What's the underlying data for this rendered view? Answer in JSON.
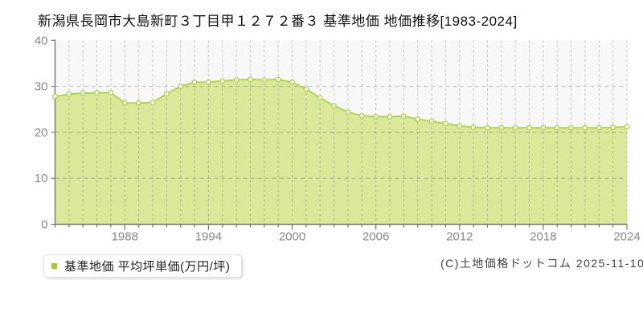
{
  "title": "新潟県長岡市大島新町３丁目甲１２７２番３ 基準地価 地価推移[1983-2024]",
  "legend": {
    "label": "基準地価 平均坪単価(万円/坪)",
    "marker_color": "#a5cc28"
  },
  "copyright": "(C)土地価格ドットコム 2025-11-10",
  "chart_data": {
    "type": "area",
    "title": "基準地価 地価推移",
    "series_name": "基準地価 平均坪単価(万円/坪)",
    "xlabel": "",
    "ylabel": "万円/坪",
    "x": [
      1983,
      1984,
      1985,
      1986,
      1987,
      1988,
      1989,
      1990,
      1991,
      1992,
      1993,
      1994,
      1995,
      1996,
      1997,
      1998,
      1999,
      2000,
      2001,
      2002,
      2003,
      2004,
      2005,
      2006,
      2007,
      2008,
      2009,
      2010,
      2011,
      2012,
      2013,
      2014,
      2015,
      2016,
      2017,
      2018,
      2019,
      2020,
      2021,
      2022,
      2023,
      2024
    ],
    "values": [
      27.8,
      28.3,
      28.5,
      28.6,
      28.6,
      26.4,
      26.4,
      26.5,
      28.4,
      30.0,
      30.9,
      30.9,
      31.2,
      31.4,
      31.5,
      31.4,
      31.5,
      30.9,
      29.4,
      27.5,
      25.8,
      24.4,
      23.6,
      23.4,
      23.4,
      23.5,
      22.9,
      22.4,
      21.9,
      21.4,
      21.1,
      21.0,
      21.0,
      21.0,
      21.0,
      21.0,
      21.0,
      21.0,
      21.0,
      21.0,
      21.1,
      21.2
    ],
    "ylim": [
      0,
      40
    ],
    "yticks": [
      0,
      10,
      20,
      30,
      40
    ],
    "xticks": [
      1988,
      1994,
      2000,
      2006,
      2012,
      2018,
      2024
    ],
    "grid": true,
    "legend_position": "bottom-left",
    "colors": {
      "fill": "#dbe89a",
      "line": "#b4d44e",
      "marker_fill": "#ffffff",
      "grid": "#6e6e6e",
      "axis": "#777777",
      "tick_label": "#888888",
      "plot_bg": "#f8f8f8"
    }
  }
}
